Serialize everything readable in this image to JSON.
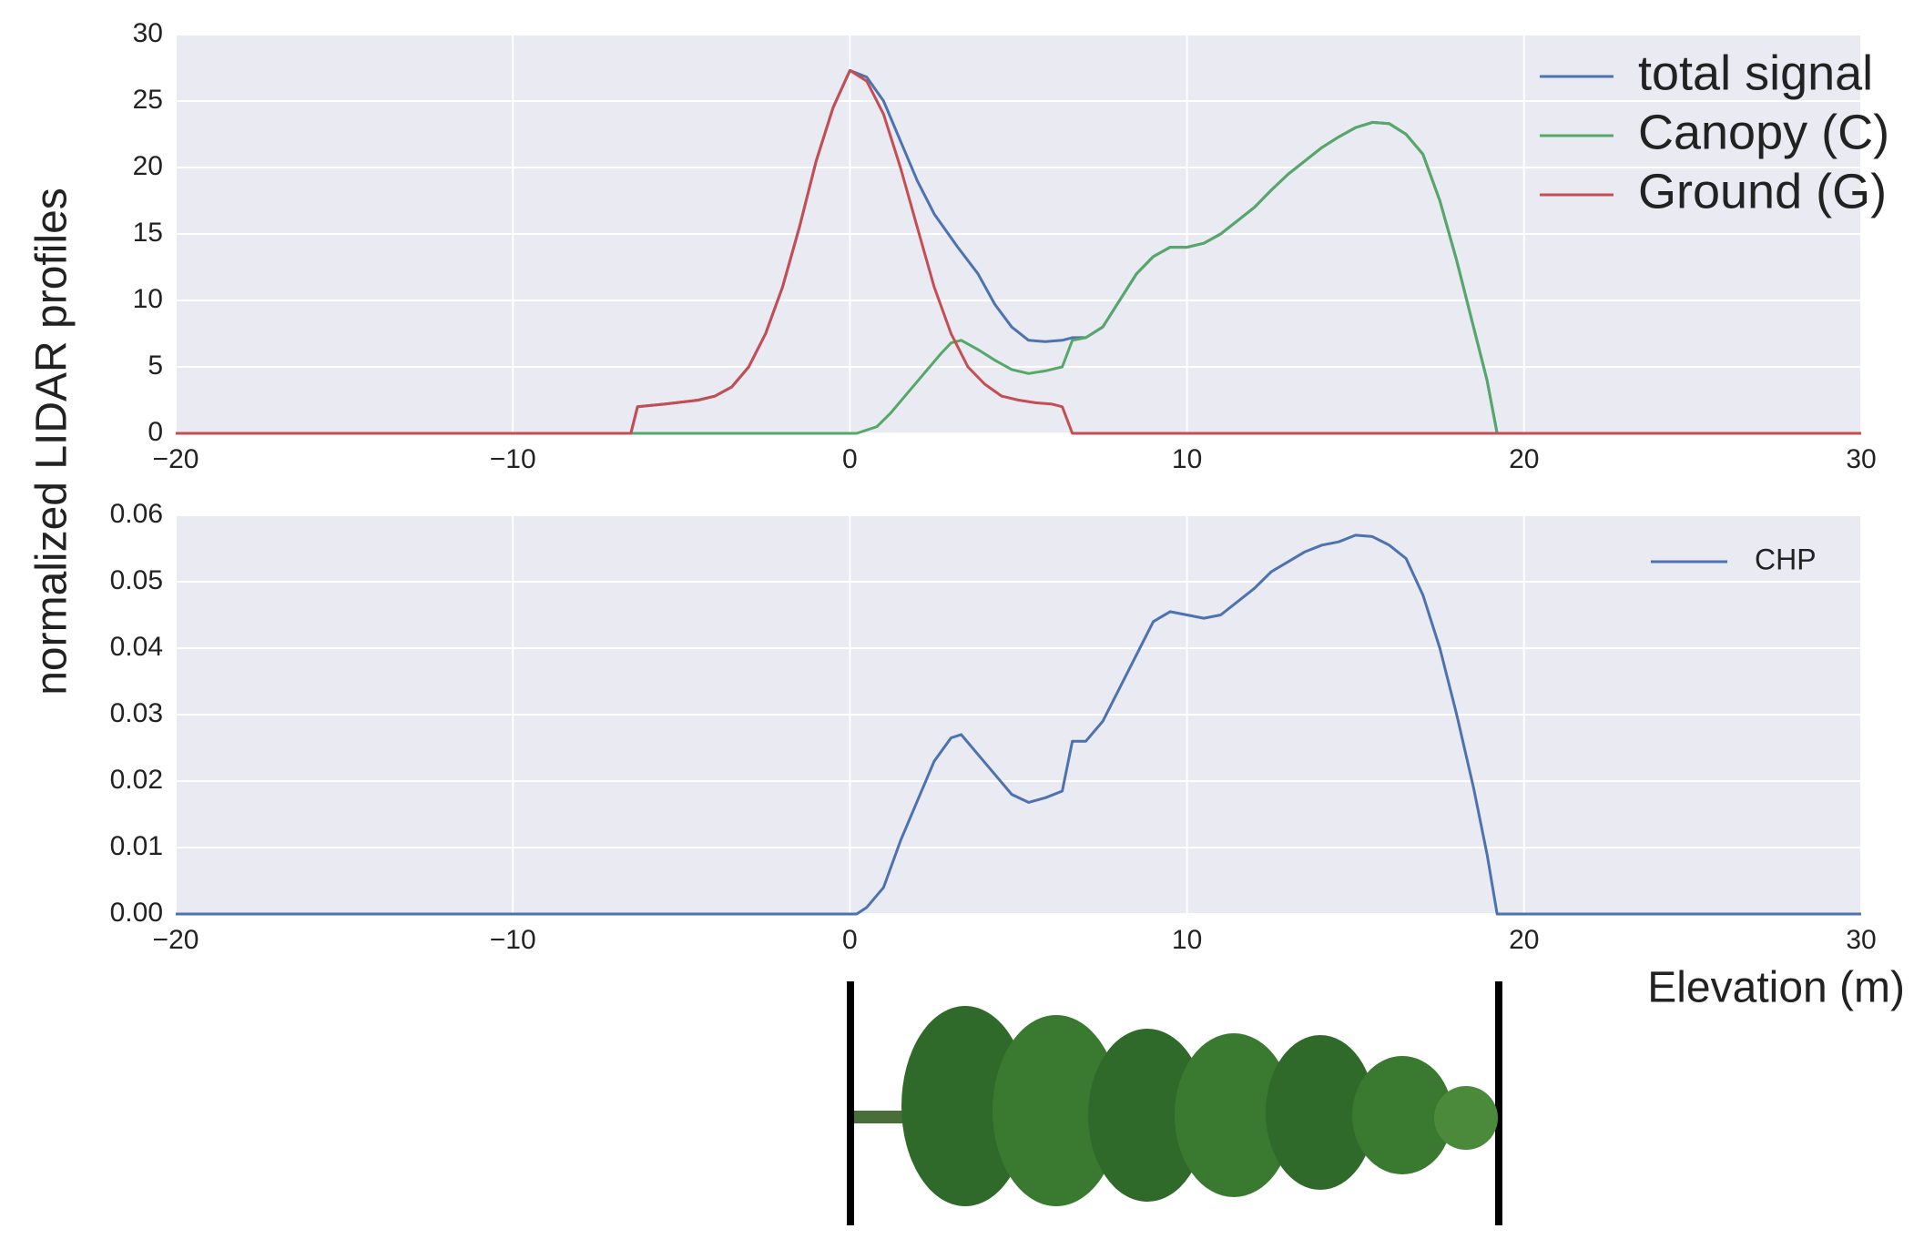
{
  "ylabel": "normalized LIDAR profiles",
  "xlabel": "Elevation (m)",
  "chart_data": [
    {
      "type": "line",
      "legend": "upper right",
      "grid": true,
      "xlim": [
        -20,
        30
      ],
      "xticks": [
        {
          "value": -20,
          "label": "−20"
        },
        {
          "value": -10,
          "label": "−10"
        },
        0,
        10,
        20,
        30
      ],
      "ylim": [
        0,
        30
      ],
      "yticks": [
        0,
        5,
        10,
        15,
        20,
        25,
        30
      ],
      "series": [
        {
          "name": "total signal",
          "color": "#4c72b0",
          "x": [
            -20,
            -6.5,
            -6.3,
            -5.5,
            -4.5,
            -4,
            -3.5,
            -3,
            -2.5,
            -2,
            -1.5,
            -1,
            -0.5,
            0,
            0.5,
            1,
            1.5,
            2,
            2.5,
            3.2,
            3.8,
            4.3,
            4.8,
            5.3,
            5.8,
            6.3,
            6.6,
            7,
            7.5,
            8,
            8.5,
            9,
            9.5,
            10,
            10.5,
            11,
            11.5,
            12,
            12.5,
            13,
            13.5,
            14,
            14.5,
            15,
            15.5,
            16,
            16.5,
            17,
            17.5,
            18,
            18.5,
            18.9,
            19.2,
            30
          ],
          "values": [
            0,
            0,
            2,
            2.2,
            2.5,
            2.8,
            3.5,
            5,
            7.5,
            11,
            15.5,
            20.5,
            24.5,
            27.3,
            26.8,
            25,
            22,
            19,
            16.5,
            14,
            12,
            9.7,
            8,
            7,
            6.9,
            7,
            7.2,
            7.2,
            8,
            10,
            12,
            13.3,
            14,
            14,
            14.3,
            15,
            16,
            17,
            18.3,
            19.5,
            20.5,
            21.5,
            22.3,
            23,
            23.4,
            23.3,
            22.5,
            21,
            17.5,
            13,
            8,
            4,
            0,
            0
          ]
        },
        {
          "name": "Canopy (C)",
          "color": "#55a868",
          "x": [
            -20,
            0.2,
            0.8,
            1.2,
            1.7,
            2.2,
            2.7,
            3,
            3.3,
            3.8,
            4.3,
            4.8,
            5.3,
            5.8,
            6.3,
            6.6,
            7,
            7.5,
            8,
            8.5,
            9,
            9.5,
            10,
            10.5,
            11,
            11.5,
            12,
            12.5,
            13,
            13.5,
            14,
            14.5,
            15,
            15.5,
            16,
            16.5,
            17,
            17.5,
            18,
            18.5,
            18.9,
            19.2,
            30
          ],
          "values": [
            0,
            0,
            0.5,
            1.5,
            3,
            4.5,
            6,
            6.8,
            7,
            6.3,
            5.5,
            4.8,
            4.5,
            4.7,
            5,
            7,
            7.2,
            8,
            10,
            12,
            13.3,
            14,
            14,
            14.3,
            15,
            16,
            17,
            18.3,
            19.5,
            20.5,
            21.5,
            22.3,
            23,
            23.4,
            23.3,
            22.5,
            21,
            17.5,
            13,
            8,
            4,
            0,
            0
          ]
        },
        {
          "name": "Ground (G)",
          "color": "#c44e52",
          "x": [
            -20,
            -6.5,
            -6.3,
            -5.5,
            -4.5,
            -4,
            -3.5,
            -3,
            -2.5,
            -2,
            -1.5,
            -1,
            -0.5,
            0,
            0.5,
            1,
            1.5,
            2,
            2.5,
            3,
            3.5,
            4,
            4.5,
            5,
            5.5,
            6,
            6.3,
            6.6,
            30
          ],
          "values": [
            0,
            0,
            2,
            2.2,
            2.5,
            2.8,
            3.5,
            5,
            7.5,
            11,
            15.5,
            20.5,
            24.5,
            27.3,
            26.5,
            24,
            20,
            15.5,
            11,
            7.5,
            5,
            3.7,
            2.8,
            2.5,
            2.3,
            2.2,
            2,
            0,
            0
          ]
        }
      ]
    },
    {
      "type": "line",
      "legend": "upper right",
      "grid": true,
      "xlim": [
        -20,
        30
      ],
      "xticks": [
        {
          "value": -20,
          "label": "−20"
        },
        {
          "value": -10,
          "label": "−10"
        },
        0,
        10,
        20,
        30
      ],
      "ylim": [
        0,
        0.06
      ],
      "yticks": [
        {
          "value": 0,
          "label": "0.00"
        },
        0.01,
        0.02,
        0.03,
        0.04,
        0.05,
        0.06
      ],
      "series": [
        {
          "name": "CHP",
          "color": "#4c72b0",
          "x": [
            -20,
            0.2,
            0.5,
            1,
            1.5,
            2,
            2.5,
            3,
            3.3,
            3.8,
            4.3,
            4.8,
            5.3,
            5.8,
            6.3,
            6.6,
            7,
            7.5,
            8,
            8.5,
            9,
            9.5,
            10,
            10.5,
            11,
            11.5,
            12,
            12.5,
            13,
            13.5,
            14,
            14.5,
            15,
            15.5,
            16,
            16.5,
            17,
            17.5,
            18,
            18.5,
            18.9,
            19.2,
            30
          ],
          "values": [
            0,
            0,
            0.001,
            0.004,
            0.011,
            0.017,
            0.023,
            0.0265,
            0.027,
            0.024,
            0.021,
            0.018,
            0.0168,
            0.0175,
            0.0185,
            0.026,
            0.026,
            0.029,
            0.034,
            0.039,
            0.044,
            0.0455,
            0.045,
            0.0445,
            0.045,
            0.047,
            0.049,
            0.0515,
            0.053,
            0.0545,
            0.0555,
            0.056,
            0.057,
            0.0568,
            0.0555,
            0.0535,
            0.048,
            0.04,
            0.03,
            0.019,
            0.009,
            0,
            0
          ]
        }
      ]
    }
  ]
}
